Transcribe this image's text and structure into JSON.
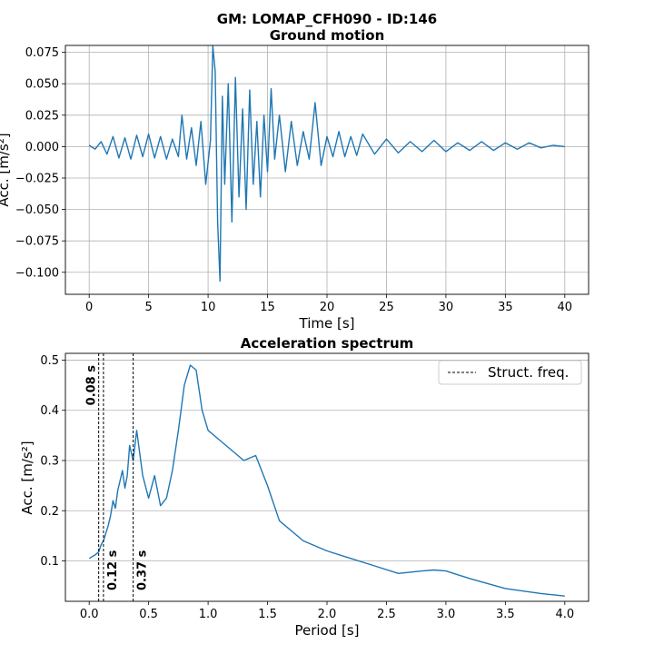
{
  "figure": {
    "suptitle": "GM: LOMAP_CFH090 - ID:146"
  },
  "chart_data": [
    {
      "type": "line",
      "title": "Ground motion",
      "xlabel": "Time [s]",
      "ylabel": "Acc. [m/s²]",
      "xlim": [
        -2.0,
        42.0
      ],
      "ylim": [
        -0.1175,
        0.0805
      ],
      "xticks": [
        "0",
        "5",
        "10",
        "15",
        "20",
        "25",
        "30",
        "35",
        "40"
      ],
      "yticks": [
        "0.075",
        "0.050",
        "0.025",
        "0.000",
        "−0.025",
        "−0.050",
        "−0.075",
        "−0.100"
      ],
      "grid": true,
      "color": "#1f77b4",
      "series": [
        {
          "x": [
            0,
            0.5,
            1,
            1.5,
            2,
            2.5,
            3,
            3.5,
            4,
            4.5,
            5,
            5.5,
            6,
            6.5,
            7,
            7.5,
            7.8,
            8.2,
            8.6,
            9,
            9.4,
            9.8,
            10.2,
            10.4,
            10.6,
            10.8,
            11,
            11.2,
            11.4,
            11.7,
            12,
            12.3,
            12.6,
            12.9,
            13.2,
            13.5,
            13.8,
            14.1,
            14.4,
            14.7,
            15,
            15.3,
            15.6,
            16,
            16.5,
            17,
            17.5,
            18,
            18.5,
            19,
            19.5,
            20,
            20.5,
            21,
            21.5,
            22,
            22.5,
            23,
            24,
            25,
            26,
            27,
            28,
            29,
            30,
            31,
            32,
            33,
            34,
            35,
            36,
            37,
            38,
            39,
            40
          ],
          "y": [
            0.001,
            -0.002,
            0.004,
            -0.006,
            0.008,
            -0.009,
            0.007,
            -0.01,
            0.009,
            -0.008,
            0.01,
            -0.009,
            0.008,
            -0.01,
            0.006,
            -0.008,
            0.025,
            -0.01,
            0.015,
            -0.015,
            0.02,
            -0.03,
            0.005,
            0.08,
            0.06,
            -0.06,
            -0.107,
            0.04,
            -0.03,
            0.05,
            -0.06,
            0.055,
            -0.04,
            0.03,
            -0.05,
            0.045,
            -0.03,
            0.02,
            -0.04,
            0.025,
            -0.02,
            0.046,
            -0.01,
            0.025,
            -0.02,
            0.02,
            -0.015,
            0.012,
            -0.01,
            0.035,
            -0.015,
            0.008,
            -0.008,
            0.012,
            -0.008,
            0.008,
            -0.007,
            0.01,
            -0.006,
            0.006,
            -0.005,
            0.004,
            -0.004,
            0.005,
            -0.004,
            0.003,
            -0.003,
            0.004,
            -0.003,
            0.003,
            -0.002,
            0.003,
            -0.001,
            0.001,
            0.0
          ]
        }
      ]
    },
    {
      "type": "line",
      "title": "Acceleration spectrum",
      "xlabel": "Period [s]",
      "ylabel": "Acc. [m/s²]",
      "xlim": [
        -0.2,
        4.2
      ],
      "ylim": [
        0.0195,
        0.5135
      ],
      "xticks": [
        "0.0",
        "0.5",
        "1.0",
        "1.5",
        "2.0",
        "2.5",
        "3.0",
        "3.5",
        "4.0"
      ],
      "yticks": [
        "0.5",
        "0.4",
        "0.3",
        "0.2",
        "0.1"
      ],
      "grid": "y-only",
      "legend": {
        "position": "top-right",
        "label": "Struct. freq."
      },
      "color": "#1f77b4",
      "series": [
        {
          "x": [
            0,
            0.05,
            0.08,
            0.1,
            0.12,
            0.14,
            0.16,
            0.18,
            0.2,
            0.22,
            0.24,
            0.26,
            0.28,
            0.3,
            0.32,
            0.34,
            0.37,
            0.4,
            0.45,
            0.5,
            0.55,
            0.6,
            0.65,
            0.7,
            0.75,
            0.8,
            0.85,
            0.9,
            0.95,
            1.0,
            1.1,
            1.2,
            1.3,
            1.4,
            1.5,
            1.6,
            1.8,
            2.0,
            2.2,
            2.4,
            2.6,
            2.8,
            2.9,
            3.0,
            3.2,
            3.5,
            3.8,
            4.0
          ],
          "y": [
            0.105,
            0.112,
            0.118,
            0.132,
            0.14,
            0.155,
            0.17,
            0.19,
            0.22,
            0.205,
            0.24,
            0.26,
            0.28,
            0.245,
            0.27,
            0.33,
            0.3,
            0.36,
            0.27,
            0.225,
            0.27,
            0.21,
            0.225,
            0.28,
            0.36,
            0.45,
            0.49,
            0.48,
            0.4,
            0.36,
            0.34,
            0.32,
            0.3,
            0.31,
            0.25,
            0.18,
            0.14,
            0.12,
            0.105,
            0.09,
            0.075,
            0.08,
            0.082,
            0.08,
            0.065,
            0.045,
            0.035,
            0.03
          ]
        }
      ],
      "vlines": [
        {
          "x": 0.08,
          "label": "0.08 s",
          "label_pos": "top"
        },
        {
          "x": 0.12,
          "label": "0.12 s",
          "label_pos": "bottom"
        },
        {
          "x": 0.37,
          "label": "0.37 s",
          "label_pos": "bottom"
        }
      ]
    }
  ]
}
